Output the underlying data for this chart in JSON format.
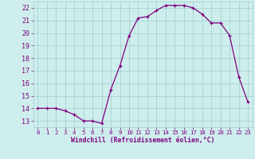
{
  "x": [
    0,
    1,
    2,
    3,
    4,
    5,
    6,
    7,
    8,
    9,
    10,
    11,
    12,
    13,
    14,
    15,
    16,
    17,
    18,
    19,
    20,
    21,
    22,
    23
  ],
  "y": [
    14.0,
    14.0,
    14.0,
    13.8,
    13.5,
    13.0,
    13.0,
    12.8,
    15.5,
    17.4,
    19.8,
    21.2,
    21.3,
    21.8,
    22.2,
    22.2,
    22.2,
    22.0,
    21.5,
    20.8,
    20.8,
    19.8,
    16.5,
    14.5
  ],
  "ylim": [
    12.5,
    22.5
  ],
  "yticks": [
    13,
    14,
    15,
    16,
    17,
    18,
    19,
    20,
    21,
    22
  ],
  "xlim": [
    -0.5,
    23.5
  ],
  "xticks": [
    0,
    1,
    2,
    3,
    4,
    5,
    6,
    7,
    8,
    9,
    10,
    11,
    12,
    13,
    14,
    15,
    16,
    17,
    18,
    19,
    20,
    21,
    22,
    23
  ],
  "xlabel": "Windchill (Refroidissement éolien,°C)",
  "line_color": "#800080",
  "marker": "+",
  "bg_color": "#ceeeed",
  "grid_color": "#9ecece",
  "tick_color": "#800080",
  "label_color": "#800080",
  "font_name": "monospace",
  "ytick_fontsize": 6.0,
  "xtick_fontsize": 5.2,
  "xlabel_fontsize": 5.8
}
